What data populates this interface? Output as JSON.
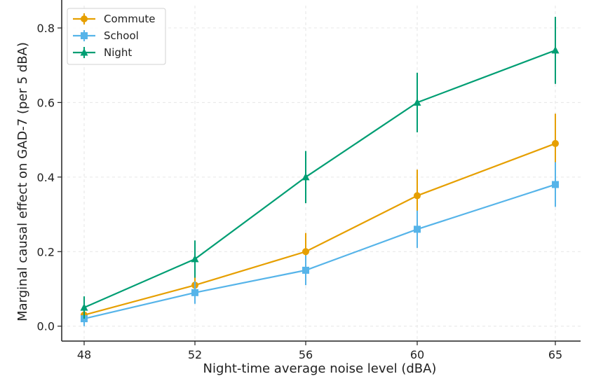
{
  "chart_data": {
    "type": "line",
    "title": "",
    "xlabel": "Night-time average noise level (dBA)",
    "ylabel": "Marginal causal effect on GAD-7 (per 5 dBA)",
    "categories": [
      "48",
      "52",
      "56",
      "60",
      "65"
    ],
    "ylim": [
      -0.04,
      0.86
    ],
    "yticks": [
      0.0,
      0.2,
      0.4,
      0.6,
      0.8
    ],
    "ytick_labels": [
      "0.0",
      "0.2",
      "0.4",
      "0.6",
      "0.8"
    ],
    "grid": true,
    "legend_position": "top-left",
    "series": [
      {
        "name": "Commute",
        "color": "#E69F00",
        "marker": "circle",
        "values": [
          0.03,
          0.11,
          0.2,
          0.35,
          0.49
        ],
        "err_low": [
          0.01,
          0.08,
          0.15,
          0.29,
          0.41
        ],
        "err_high": [
          0.05,
          0.14,
          0.25,
          0.42,
          0.57
        ]
      },
      {
        "name": "School",
        "color": "#56B4E9",
        "marker": "square",
        "values": [
          0.02,
          0.09,
          0.15,
          0.26,
          0.38
        ],
        "err_low": [
          0.0,
          0.06,
          0.11,
          0.21,
          0.32
        ],
        "err_high": [
          0.04,
          0.12,
          0.19,
          0.31,
          0.44
        ]
      },
      {
        "name": "Night",
        "color": "#009E73",
        "marker": "triangle",
        "values": [
          0.05,
          0.18,
          0.4,
          0.6,
          0.74
        ],
        "err_low": [
          0.02,
          0.13,
          0.33,
          0.52,
          0.65
        ],
        "err_high": [
          0.08,
          0.23,
          0.47,
          0.68,
          0.83
        ]
      }
    ]
  }
}
